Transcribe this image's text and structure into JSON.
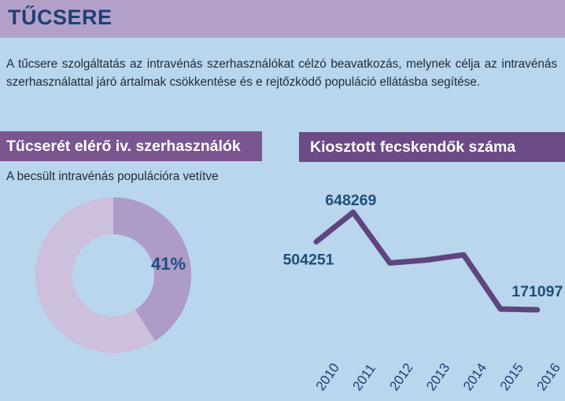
{
  "page": {
    "title": "TŰCSERE",
    "intro": "A tűcsere szolgáltatás az intravénás szerhasználókat célzó beavatkozás, melynek célja az intravénás szerhasználattal járó ártalmak csökkentése és e rejtőzködő populáció ellátásba segítése."
  },
  "left_panel": {
    "heading": "Tűcserét elérő iv. szerhasználók",
    "subtitle": "A becsült intravénás populációra vetítve"
  },
  "right_panel": {
    "heading": "Kiosztott fecskendők száma"
  },
  "colors": {
    "background": "#b9d6ec",
    "header": "#b3a0c8",
    "title_text": "#1f3f76",
    "section_bar": "#7a5590",
    "donut_value": "#ad9bc9",
    "donut_rest": "#ccc0dc",
    "line": "#5f4580",
    "label_text": "#1f4e79"
  },
  "chart_data": [
    {
      "type": "pie",
      "donut": true,
      "values": [
        41,
        59
      ],
      "label": "41%"
    },
    {
      "type": "line",
      "x": [
        "2010",
        "2011",
        "2012",
        "2013",
        "2014",
        "2015",
        "2016"
      ],
      "values": [
        504251,
        648269,
        400000,
        415000,
        440000,
        175000,
        171097
      ],
      "data_labels": [
        {
          "index": 0,
          "text": "504251"
        },
        {
          "index": 1,
          "text": "648269"
        },
        {
          "index": 6,
          "text": "171097"
        }
      ]
    }
  ]
}
